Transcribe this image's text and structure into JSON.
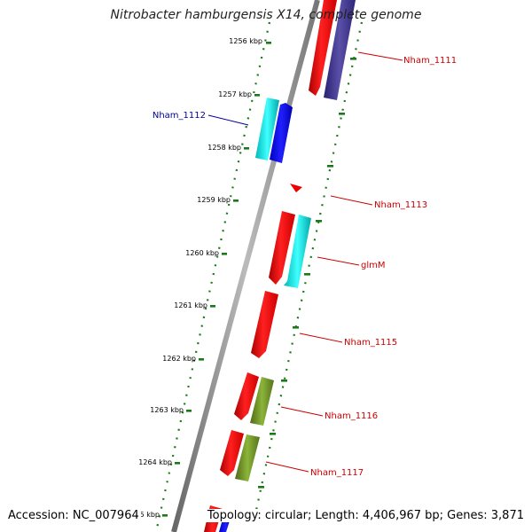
{
  "title": "Nitrobacter hamburgensis X14, complete genome",
  "accession_text": "Accession: NC_007964",
  "topology_text": "Topology: circular; Length: 4,406,967 bp; Genes: 3,871",
  "ticks": [
    {
      "label": "1256 kbp"
    },
    {
      "label": "1257 kbp"
    },
    {
      "label": "1258 kbp"
    },
    {
      "label": "1259 kbp"
    },
    {
      "label": "1260 kbp"
    },
    {
      "label": "1261 kbp"
    },
    {
      "label": "1262 kbp"
    },
    {
      "label": "1263 kbp"
    },
    {
      "label": "1264 kbp"
    },
    {
      "label": "1265 kbp"
    }
  ],
  "gene_labels": [
    {
      "text": "Nham_1111",
      "color": "#cc0000"
    },
    {
      "text": "Nham_1112",
      "color": "#000099"
    },
    {
      "text": "Nham_1113",
      "color": "#cc0000"
    },
    {
      "text": "glmM",
      "color": "#cc0000"
    },
    {
      "text": "Nham_1115",
      "color": "#cc0000"
    },
    {
      "text": "Nham_1116",
      "color": "#cc0000"
    },
    {
      "text": "Nham_1117",
      "color": "#cc0000"
    }
  ],
  "colors": {
    "backbone": "#888888",
    "tick_dots": "#1a7a1a",
    "cds_forward": "#ff0000",
    "cds_feature_navy": "#3a2f80",
    "cds_reverse_cyan": "#00cccc",
    "cds_reverse_blue": "#0000ee",
    "cds_olive": "#6b8e23"
  }
}
